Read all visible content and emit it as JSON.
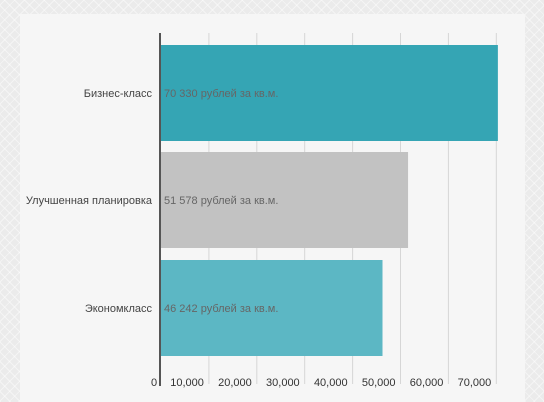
{
  "chart_data": {
    "type": "bar",
    "orientation": "horizontal",
    "categories": [
      "Бизнес-класс",
      "Улучшенная планировка",
      "Экономкласс"
    ],
    "values": [
      70330,
      51578,
      46242
    ],
    "data_labels": [
      "70 330 рублей за кв.м.",
      "51 578 рублей за кв.м.",
      "46 242 рублей за кв.м."
    ],
    "colors": [
      "#35a5b4",
      "#c2c2c2",
      "#5cb7c4"
    ],
    "xlim": [
      0,
      70000
    ],
    "xticks": [
      0,
      10000,
      20000,
      30000,
      40000,
      50000,
      60000,
      70000
    ],
    "xtick_labels": [
      "0",
      "10,000",
      "20,000",
      "30,000",
      "40,000",
      "50,000",
      "60,000",
      "70,000"
    ],
    "grid": true,
    "title": "",
    "xlabel": "",
    "ylabel": ""
  }
}
